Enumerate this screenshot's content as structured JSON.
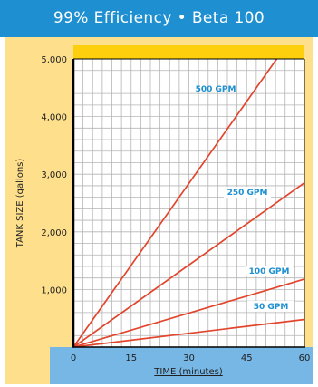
{
  "header": {
    "title": "99% Efficiency • Beta 100"
  },
  "colors": {
    "header_bg": "#1e8fd1",
    "panel_bg": "#fddf8c",
    "top_band": "#fdcf0c",
    "xaxis_band": "#76b7e5",
    "line": "#e2452c",
    "line_label": "#1c8fd0"
  },
  "chart_data": {
    "type": "line",
    "title": "",
    "xlabel": "TIME (minutes)",
    "ylabel": "TANK SIZE (gallons)",
    "xlim": [
      0,
      60
    ],
    "ylim": [
      0,
      5000
    ],
    "x_ticks": [
      0,
      15,
      30,
      45,
      60
    ],
    "x_tick_labels": [
      "0",
      "15",
      "30",
      "45",
      "60"
    ],
    "y_ticks": [
      1000,
      2000,
      3000,
      4000,
      5000
    ],
    "y_tick_labels": [
      "1,000",
      "2,000",
      "3,000",
      "4,000",
      "5,000"
    ],
    "grid": true,
    "series": [
      {
        "name": "500 GPM",
        "x": [
          0,
          52.8
        ],
        "y": [
          0,
          5000
        ]
      },
      {
        "name": "250 GPM",
        "x": [
          0,
          60
        ],
        "y": [
          0,
          2850
        ]
      },
      {
        "name": "100 GPM",
        "x": [
          0,
          60
        ],
        "y": [
          0,
          1180
        ]
      },
      {
        "name": "50 GPM",
        "x": [
          0,
          60
        ],
        "y": [
          0,
          480
        ]
      }
    ]
  }
}
